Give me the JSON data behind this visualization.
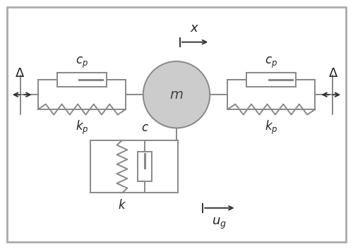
{
  "fig_width": 5.0,
  "fig_height": 3.53,
  "dpi": 100,
  "line_color": "#888888",
  "mass_color": "#cccccc",
  "mass_label": "m",
  "cp_label": "$c_p$",
  "kp_label": "$k_p$",
  "c_label": "$c$",
  "k_label": "$k$",
  "x_label": "$x$",
  "ug_label": "$u_g$",
  "delta_label": "$\\Delta$",
  "arrow_color": "#333333",
  "text_color": "#222222"
}
